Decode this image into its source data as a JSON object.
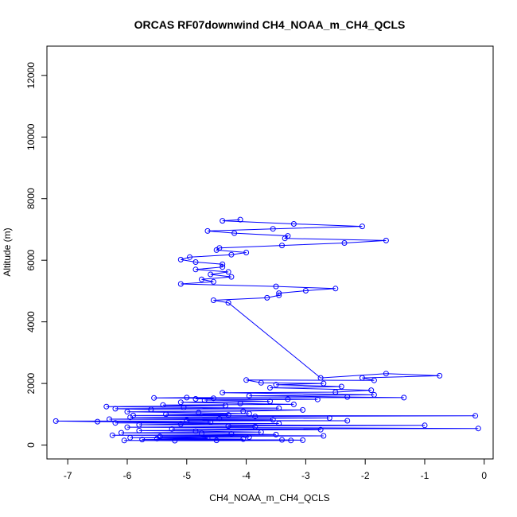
{
  "chart_data": {
    "type": "line",
    "title": "ORCAS RF07downwind CH4_NOAA_m_CH4_QCLS",
    "xlabel": "CH4_NOAA_m_CH4_QCLS",
    "ylabel": "Altitude (m)",
    "xlim": [
      -7.35,
      0.15
    ],
    "ylim": [
      -450,
      12950
    ],
    "x_ticks": [
      -7,
      -6,
      -5,
      -4,
      -3,
      -2,
      -1,
      0
    ],
    "y_ticks": [
      0,
      2000,
      4000,
      6000,
      8000,
      10000,
      12000
    ],
    "x_tick_labels": [
      "-7",
      "-6",
      "-5",
      "-4",
      "-3",
      "-2",
      "-1",
      "0"
    ],
    "y_tick_labels": [
      "0",
      "2000",
      "4000",
      "6000",
      "8000",
      "10000",
      "12000"
    ],
    "grid": false,
    "series": [
      {
        "name": "CH4_NOAA_m_CH4_QCLS",
        "color": "#0000ff",
        "marker": "open-circle",
        "points": [
          [
            -4.1,
            7320
          ],
          [
            -4.4,
            7280
          ],
          [
            -3.2,
            7180
          ],
          [
            -2.05,
            7100
          ],
          [
            -3.55,
            7020
          ],
          [
            -4.65,
            6950
          ],
          [
            -4.2,
            6880
          ],
          [
            -3.3,
            6790
          ],
          [
            -3.35,
            6710
          ],
          [
            -1.65,
            6640
          ],
          [
            -2.35,
            6560
          ],
          [
            -3.4,
            6480
          ],
          [
            -4.45,
            6400
          ],
          [
            -4.5,
            6330
          ],
          [
            -4.0,
            6250
          ],
          [
            -4.25,
            6180
          ],
          [
            -4.95,
            6100
          ],
          [
            -5.1,
            6020
          ],
          [
            -4.85,
            5940
          ],
          [
            -4.4,
            5870
          ],
          [
            -4.4,
            5780
          ],
          [
            -4.85,
            5700
          ],
          [
            -4.3,
            5620
          ],
          [
            -4.6,
            5540
          ],
          [
            -4.25,
            5460
          ],
          [
            -4.75,
            5380
          ],
          [
            -4.55,
            5300
          ],
          [
            -5.1,
            5230
          ],
          [
            -3.5,
            5150
          ],
          [
            -2.5,
            5080
          ],
          [
            -3.0,
            5010
          ],
          [
            -3.45,
            4930
          ],
          [
            -3.45,
            4860
          ],
          [
            -3.65,
            4780
          ],
          [
            -4.55,
            4700
          ],
          [
            -4.3,
            4620
          ],
          [
            -2.75,
            2180
          ],
          [
            -1.65,
            2320
          ],
          [
            -0.75,
            2250
          ],
          [
            -2.05,
            2180
          ],
          [
            -1.85,
            2100
          ],
          [
            -4.0,
            2110
          ],
          [
            -3.75,
            2020
          ],
          [
            -2.7,
            2000
          ],
          [
            -3.5,
            1960
          ],
          [
            -2.4,
            1900
          ],
          [
            -3.6,
            1860
          ],
          [
            -1.9,
            1780
          ],
          [
            -2.5,
            1720
          ],
          [
            -4.4,
            1700
          ],
          [
            -1.85,
            1630
          ],
          [
            -3.95,
            1600
          ],
          [
            -2.3,
            1560
          ],
          [
            -1.35,
            1540
          ],
          [
            -5.0,
            1540
          ],
          [
            -5.55,
            1530
          ],
          [
            -4.55,
            1520
          ],
          [
            -4.85,
            1500
          ],
          [
            -3.3,
            1490
          ],
          [
            -2.8,
            1480
          ],
          [
            -4.7,
            1460
          ],
          [
            -3.6,
            1420
          ],
          [
            -5.1,
            1390
          ],
          [
            -4.1,
            1350
          ],
          [
            -3.2,
            1320
          ],
          [
            -5.4,
            1300
          ],
          [
            -4.35,
            1280
          ],
          [
            -6.35,
            1250
          ],
          [
            -5.05,
            1220
          ],
          [
            -3.45,
            1200
          ],
          [
            -6.2,
            1180
          ],
          [
            -5.6,
            1150
          ],
          [
            -3.05,
            1140
          ],
          [
            -4.05,
            1100
          ],
          [
            -6.0,
            1080
          ],
          [
            -4.8,
            1050
          ],
          [
            -3.95,
            1020
          ],
          [
            -5.35,
            1000
          ],
          [
            -4.3,
            980
          ],
          [
            -5.9,
            960
          ],
          [
            -0.15,
            950
          ],
          [
            -3.85,
            930
          ],
          [
            -5.95,
            900
          ],
          [
            -2.6,
            880
          ],
          [
            -4.45,
            860
          ],
          [
            -6.3,
            840
          ],
          [
            -3.55,
            820
          ],
          [
            -5.0,
            800
          ],
          [
            -2.3,
            790
          ],
          [
            -7.2,
            780
          ],
          [
            -6.5,
            760
          ],
          [
            -4.6,
            740
          ],
          [
            -6.2,
            720
          ],
          [
            -3.45,
            700
          ],
          [
            -5.1,
            680
          ],
          [
            -5.8,
            660
          ],
          [
            -1.0,
            640
          ],
          [
            -4.3,
            620
          ],
          [
            -3.85,
            600
          ],
          [
            -6.0,
            580
          ],
          [
            -0.1,
            540
          ],
          [
            -5.25,
            520
          ],
          [
            -2.75,
            500
          ],
          [
            -5.8,
            470
          ],
          [
            -4.85,
            450
          ],
          [
            -3.75,
            420
          ],
          [
            -6.1,
            400
          ],
          [
            -4.75,
            380
          ],
          [
            -4.25,
            360
          ],
          [
            -3.5,
            340
          ],
          [
            -6.25,
            320
          ],
          [
            -2.7,
            300
          ],
          [
            -5.45,
            280
          ],
          [
            -3.95,
            260
          ],
          [
            -5.95,
            240
          ],
          [
            -4.65,
            220
          ],
          [
            -5.5,
            210
          ],
          [
            -4.05,
            195
          ],
          [
            -5.75,
            180
          ],
          [
            -3.4,
            170
          ],
          [
            -3.05,
            160
          ],
          [
            -4.5,
            155
          ],
          [
            -6.05,
            150
          ],
          [
            -5.2,
            145
          ],
          [
            -3.25,
            150
          ]
        ]
      }
    ]
  }
}
